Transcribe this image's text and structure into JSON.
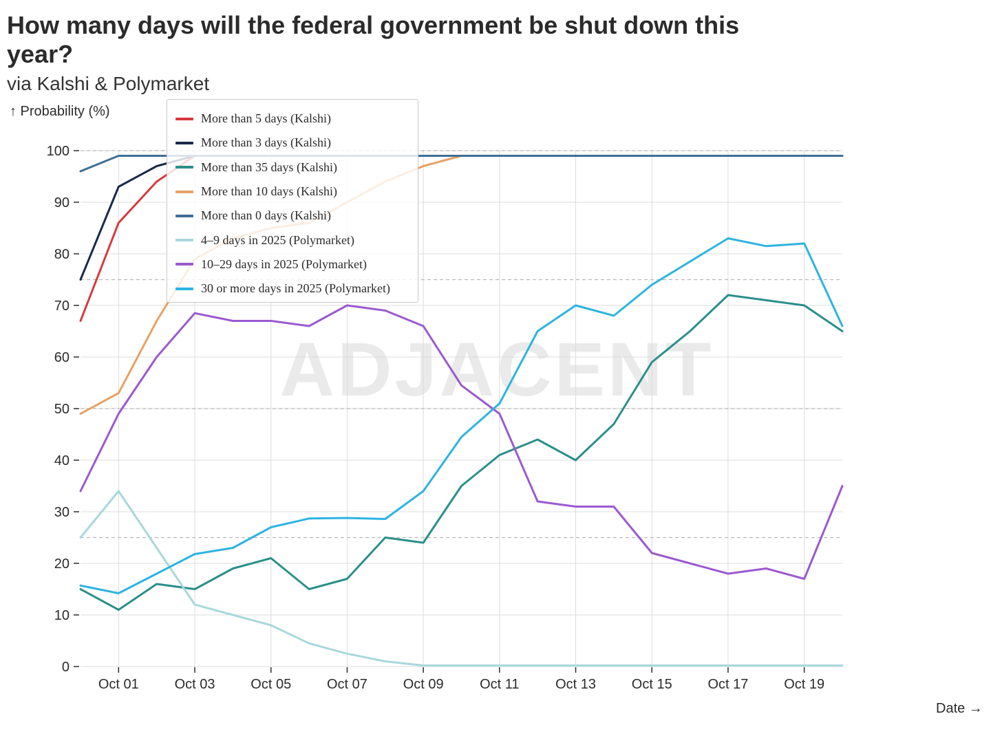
{
  "title": "How many days will the federal government be shut down this year?",
  "subtitle": "via Kalshi & Polymarket",
  "watermark": "ADJACENT",
  "chart_data": {
    "type": "line",
    "title": "How many days will the federal government be shut down this year?",
    "subtitle": "via Kalshi & Polymarket",
    "ylabel": "↑ Probability (%)",
    "xlabel": "Date →",
    "ylim": [
      0,
      100
    ],
    "yticks": [
      "0",
      "10",
      "20",
      "30",
      "40",
      "50",
      "60",
      "70",
      "80",
      "90",
      "100"
    ],
    "xtick_labels": [
      "Oct 01",
      "Oct 03",
      "Oct 05",
      "Oct 07",
      "Oct 09",
      "Oct 11",
      "Oct 13",
      "Oct 15",
      "Oct 17",
      "Oct 19"
    ],
    "x": [
      "Sep 30",
      "Oct 01",
      "Oct 02",
      "Oct 03",
      "Oct 04",
      "Oct 05",
      "Oct 06",
      "Oct 07",
      "Oct 08",
      "Oct 09",
      "Oct 10",
      "Oct 11",
      "Oct 12",
      "Oct 13",
      "Oct 14",
      "Oct 15",
      "Oct 16",
      "Oct 17",
      "Oct 18",
      "Oct 19",
      "Oct 20"
    ],
    "grid": true,
    "legend_position": "top-left",
    "series": [
      {
        "name": "More than 5 days (Kalshi)",
        "color": "#d63a3f",
        "values": [
          67,
          86,
          94,
          99,
          99,
          99,
          99,
          99,
          99,
          99,
          99,
          99,
          99,
          99,
          99,
          99,
          99,
          99,
          99,
          99,
          99
        ]
      },
      {
        "name": "More than 3 days (Kalshi)",
        "color": "#1b2a4a",
        "values": [
          75,
          93,
          97,
          99,
          99,
          99,
          99,
          99,
          99,
          99,
          99,
          99,
          99,
          99,
          99,
          99,
          99,
          99,
          99,
          99,
          99
        ]
      },
      {
        "name": "More than 35 days (Kalshi)",
        "color": "#2a8f8a",
        "values": [
          15,
          11,
          16,
          15,
          19,
          21,
          15,
          17,
          25,
          24,
          35,
          41,
          44,
          40,
          47,
          59,
          65,
          72,
          71,
          70,
          65
        ]
      },
      {
        "name": "More than 10 days (Kalshi)",
        "color": "#e8a164",
        "values": [
          49,
          53,
          67,
          79,
          83,
          85,
          86,
          90,
          94,
          97,
          99,
          99,
          99,
          99,
          99,
          99,
          99,
          99,
          99,
          99,
          99
        ]
      },
      {
        "name": "More than 0 days (Kalshi)",
        "color": "#3e6f96",
        "values": [
          96,
          99,
          99,
          99,
          99,
          99,
          99,
          99,
          99,
          99,
          99,
          99,
          99,
          99,
          99,
          99,
          99,
          99,
          99,
          99,
          99
        ]
      },
      {
        "name": "4–9 days in 2025 (Polymarket)",
        "color": "#a8d8dc",
        "values": [
          25,
          34,
          23,
          12,
          10,
          8,
          4.5,
          2.5,
          1,
          0.2,
          0.2,
          0.2,
          0.2,
          0.2,
          0.2,
          0.2,
          0.2,
          0.2,
          0.2,
          0.2,
          0.2
        ]
      },
      {
        "name": "10–29 days in 2025 (Polymarket)",
        "color": "#9b59d0",
        "values": [
          34,
          49,
          60,
          68.5,
          67,
          67,
          66,
          70,
          69,
          66,
          54.5,
          49,
          32,
          31,
          31,
          22,
          20,
          18,
          19,
          17,
          35
        ]
      },
      {
        "name": "30 or more days in 2025 (Polymarket)",
        "color": "#2cb4e0",
        "values": [
          15.7,
          14.2,
          18,
          21.8,
          23,
          27,
          28.7,
          28.8,
          28.6,
          34,
          44.5,
          51,
          65,
          70,
          68,
          74,
          78.5,
          83,
          81.5,
          82,
          66
        ]
      }
    ]
  }
}
